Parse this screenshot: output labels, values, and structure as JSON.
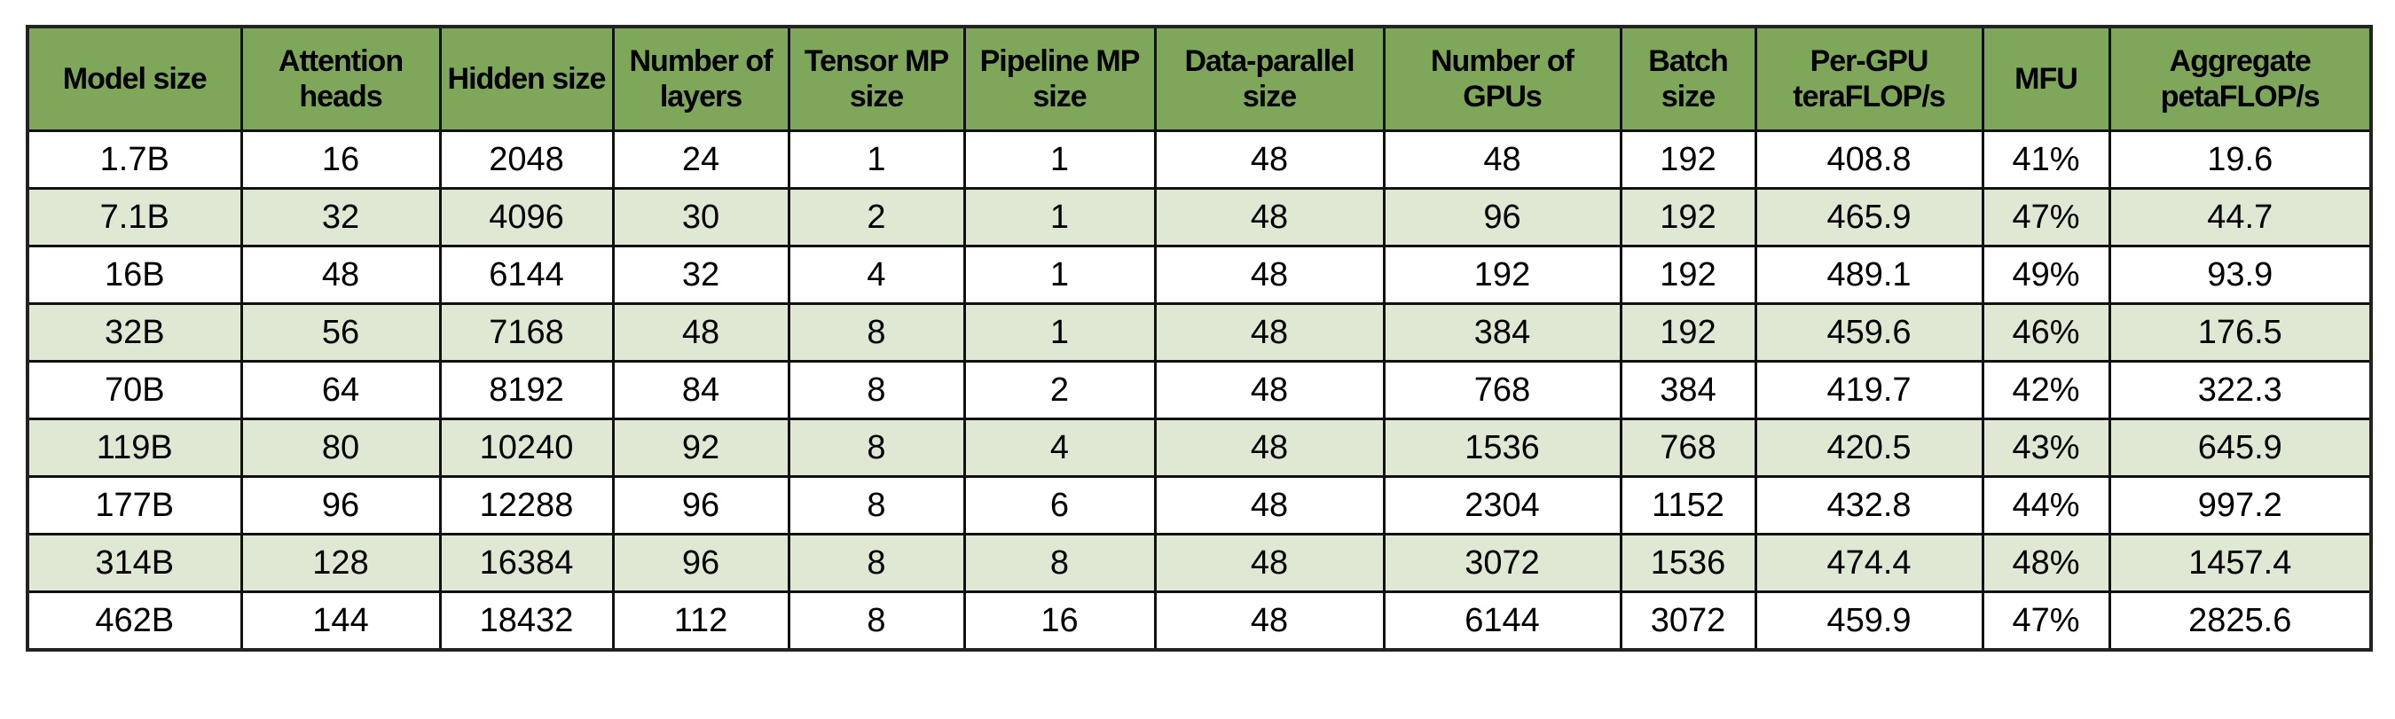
{
  "colors": {
    "header_bg": "#7ea75a",
    "alt_row_bg": "#dee8d3",
    "row_bg": "#ffffff",
    "border": "#111111"
  },
  "table": {
    "headers": [
      "Model size",
      "Attention heads",
      "Hidden size",
      "Number of layers",
      "Tensor MP size",
      "Pipeline MP size",
      "Data-parallel size",
      "Number of GPUs",
      "Batch size",
      "Per-GPU teraFLOP/s",
      "MFU",
      "Aggregate petaFLOP/s"
    ],
    "rows": [
      [
        "1.7B",
        "16",
        "2048",
        "24",
        "1",
        "1",
        "48",
        "48",
        "192",
        "408.8",
        "41%",
        "19.6"
      ],
      [
        "7.1B",
        "32",
        "4096",
        "30",
        "2",
        "1",
        "48",
        "96",
        "192",
        "465.9",
        "47%",
        "44.7"
      ],
      [
        "16B",
        "48",
        "6144",
        "32",
        "4",
        "1",
        "48",
        "192",
        "192",
        "489.1",
        "49%",
        "93.9"
      ],
      [
        "32B",
        "56",
        "7168",
        "48",
        "8",
        "1",
        "48",
        "384",
        "192",
        "459.6",
        "46%",
        "176.5"
      ],
      [
        "70B",
        "64",
        "8192",
        "84",
        "8",
        "2",
        "48",
        "768",
        "384",
        "419.7",
        "42%",
        "322.3"
      ],
      [
        "119B",
        "80",
        "10240",
        "92",
        "8",
        "4",
        "48",
        "1536",
        "768",
        "420.5",
        "43%",
        "645.9"
      ],
      [
        "177B",
        "96",
        "12288",
        "96",
        "8",
        "6",
        "48",
        "2304",
        "1152",
        "432.8",
        "44%",
        "997.2"
      ],
      [
        "314B",
        "128",
        "16384",
        "96",
        "8",
        "8",
        "48",
        "3072",
        "1536",
        "474.4",
        "48%",
        "1457.4"
      ],
      [
        "462B",
        "144",
        "18432",
        "112",
        "8",
        "16",
        "48",
        "6144",
        "3072",
        "459.9",
        "47%",
        "2825.6"
      ]
    ]
  }
}
